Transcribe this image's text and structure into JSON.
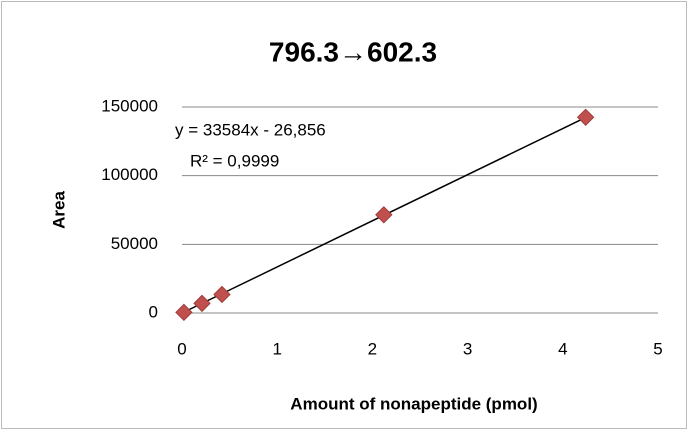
{
  "chart_data": {
    "type": "scatter",
    "title": "796.3→602.3",
    "x_label": "Amount of nonapeptide (pmol)",
    "y_label": "Area",
    "x": [
      0.02,
      0.21,
      0.42,
      2.12,
      4.24
    ],
    "values": [
      500,
      7000,
      13500,
      71500,
      142500
    ],
    "color": "#c0504d",
    "xlim": [
      0,
      5
    ],
    "xticks": [
      0,
      1,
      2,
      3,
      4,
      5
    ],
    "ylim": [
      0,
      150000
    ],
    "yticks": [
      0,
      50000,
      100000,
      150000
    ],
    "grid": true,
    "trendline": {
      "label": "y = 33584x - 26,856",
      "r2_label": "R² = 0,9999",
      "slope": 33584,
      "intercept": -26.856
    }
  }
}
